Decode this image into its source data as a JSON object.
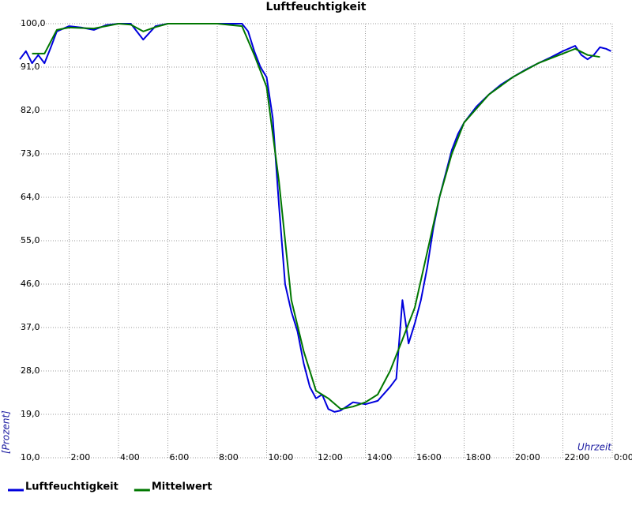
{
  "chart_data": {
    "type": "line",
    "title": "Luftfeuchtigkeit",
    "x_label": "Uhrzeit",
    "y_label": "[Prozent]",
    "xlim": [
      0,
      24
    ],
    "ylim": [
      10,
      100
    ],
    "xticks": [
      {
        "value": 2,
        "label": "2:00"
      },
      {
        "value": 4,
        "label": "4:00"
      },
      {
        "value": 6,
        "label": "6:00"
      },
      {
        "value": 8,
        "label": "8:00"
      },
      {
        "value": 10,
        "label": "10:00"
      },
      {
        "value": 12,
        "label": "12:00"
      },
      {
        "value": 14,
        "label": "14:00"
      },
      {
        "value": 16,
        "label": "16:00"
      },
      {
        "value": 18,
        "label": "18:00"
      },
      {
        "value": 20,
        "label": "20:00"
      },
      {
        "value": 22,
        "label": "22:00"
      },
      {
        "value": 24,
        "label": "0:00"
      }
    ],
    "yticks": [
      {
        "value": 10,
        "label": "10,0"
      },
      {
        "value": 19,
        "label": "19,0"
      },
      {
        "value": 28,
        "label": "28,0"
      },
      {
        "value": 37,
        "label": "37,0"
      },
      {
        "value": 46,
        "label": "46,0"
      },
      {
        "value": 55,
        "label": "55,0"
      },
      {
        "value": 64,
        "label": "64,0"
      },
      {
        "value": 73,
        "label": "73,0"
      },
      {
        "value": 82,
        "label": "82,0"
      },
      {
        "value": 91,
        "label": "91,0"
      },
      {
        "value": 100,
        "label": "100,0"
      }
    ],
    "grid": true,
    "series": [
      {
        "name": "Luftfeuchtigkeit",
        "color": "#0000dd",
        "x": [
          0,
          0.25,
          0.5,
          0.75,
          1,
          1.25,
          1.5,
          2,
          2.5,
          3,
          3.5,
          4,
          4.5,
          5,
          5.5,
          6,
          6.5,
          7,
          7.5,
          8,
          8.5,
          9,
          9.25,
          9.5,
          9.75,
          10,
          10.25,
          10.5,
          10.75,
          11,
          11.25,
          11.5,
          11.75,
          12,
          12.25,
          12.5,
          12.75,
          13,
          13.5,
          14,
          14.5,
          15,
          15.25,
          15.5,
          15.75,
          16,
          16.25,
          16.5,
          16.75,
          17,
          17.25,
          17.5,
          17.75,
          18,
          18.5,
          19,
          19.5,
          20,
          20.5,
          21,
          21.5,
          22,
          22.5,
          22.75,
          23,
          23.25,
          23.5,
          23.75,
          23.95
        ],
        "values": [
          92.6,
          94.3,
          91.8,
          93.5,
          91.8,
          95,
          98.4,
          99.5,
          99.2,
          98.7,
          99.7,
          100,
          100,
          96.7,
          99.5,
          100,
          100,
          100,
          100,
          100,
          100,
          100,
          98.4,
          94.3,
          91,
          88.9,
          80.4,
          62.4,
          46,
          40.3,
          36.2,
          29.6,
          24.7,
          22.3,
          23.1,
          20.1,
          19.5,
          19.8,
          21.5,
          21.1,
          21.8,
          24.7,
          26.4,
          42.7,
          33.7,
          37.8,
          42.7,
          49.3,
          57.5,
          64,
          68.9,
          73.8,
          77.1,
          79.5,
          82.8,
          85.3,
          87.4,
          89,
          90.5,
          91.8,
          93,
          94.3,
          95.4,
          93.5,
          92.6,
          93.5,
          95.1,
          94.8,
          94.3
        ]
      },
      {
        "name": "Mittelwert",
        "color": "#007700",
        "x": [
          0.5,
          1,
          1.5,
          2,
          3,
          4,
          4.5,
          5,
          5.5,
          6,
          7,
          8,
          9,
          9.5,
          10,
          10.5,
          11,
          11.5,
          12,
          12.5,
          13,
          13.5,
          14,
          14.5,
          15,
          15.5,
          16,
          16.5,
          17,
          17.5,
          18,
          19,
          20,
          21,
          22,
          22.5,
          23,
          23.5
        ],
        "values": [
          93.8,
          93.8,
          98.7,
          99.2,
          99,
          100,
          99.8,
          98.4,
          99.3,
          100,
          100,
          100,
          99.5,
          93.5,
          86.9,
          67.3,
          42.7,
          32.1,
          23.9,
          22.3,
          20.1,
          20.6,
          21.5,
          23.1,
          28,
          34.5,
          41.1,
          52.5,
          64,
          73,
          79.5,
          85.3,
          89,
          91.8,
          93.8,
          94.8,
          93.5,
          93.1
        ]
      }
    ]
  }
}
